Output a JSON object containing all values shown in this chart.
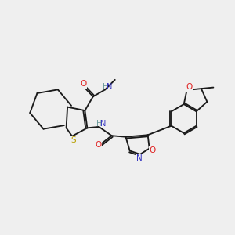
{
  "background_color": "#efefef",
  "bond_color": "#1a1a1a",
  "atom_colors": {
    "N": "#3535c0",
    "O": "#e02020",
    "S": "#b8a000",
    "H_color": "#6a9a9a",
    "C": "#1a1a1a"
  },
  "fig_width": 3.0,
  "fig_height": 3.0,
  "dpi": 100
}
